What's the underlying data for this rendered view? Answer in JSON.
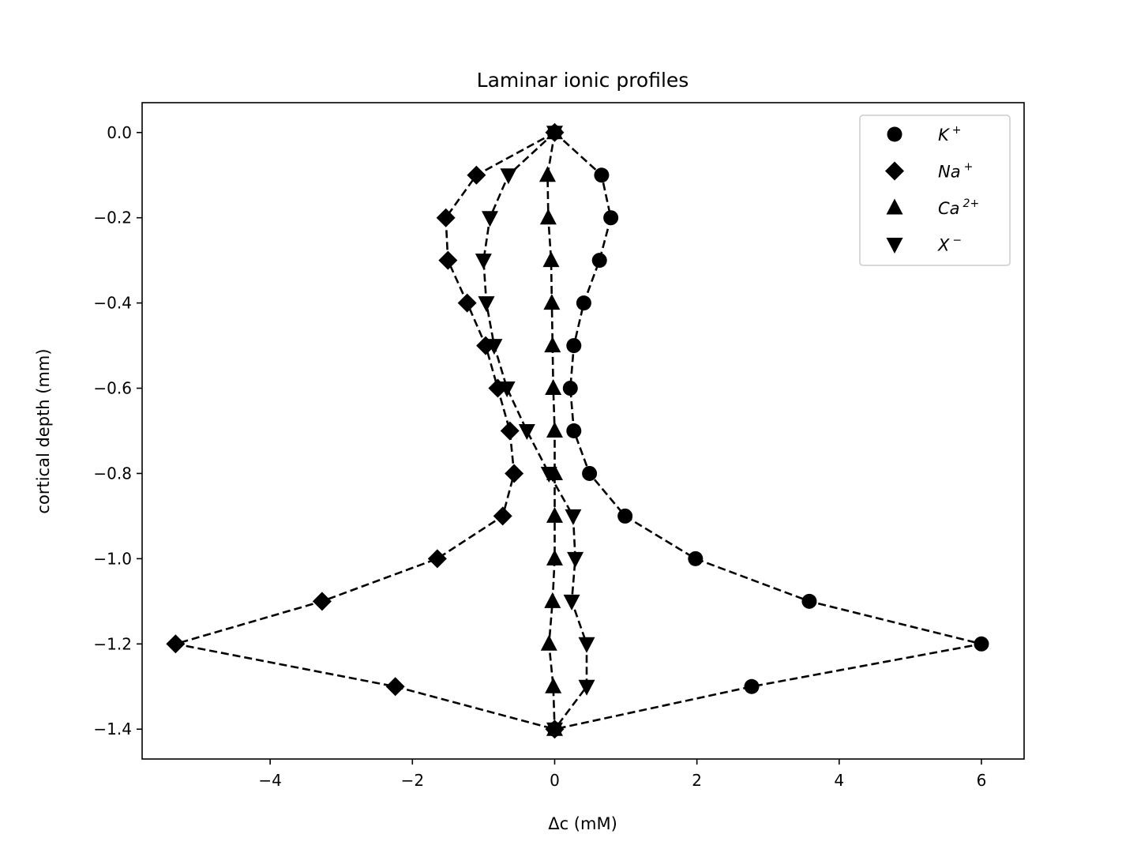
{
  "chart_data": {
    "type": "line",
    "title": "Laminar ionic profiles",
    "xlabel": "Δc (mM)",
    "ylabel": "cortical depth (mm)",
    "xlim": [
      -5.8,
      6.6
    ],
    "ylim": [
      -1.47,
      0.07
    ],
    "xticks": [
      -4,
      -2,
      0,
      2,
      4,
      6
    ],
    "xtick_labels": [
      "−4",
      "−2",
      "0",
      "2",
      "4",
      "6"
    ],
    "yticks": [
      0.0,
      -0.2,
      -0.4,
      -0.6,
      -0.8,
      -1.0,
      -1.2,
      -1.4
    ],
    "ytick_labels": [
      "0.0",
      "−0.2",
      "−0.4",
      "−0.6",
      "−0.8",
      "−1.0",
      "−1.2",
      "−1.4"
    ],
    "grid": false,
    "legend_position": "top-right",
    "line_style": "dashed",
    "color": "#000000",
    "y": [
      0.0,
      -0.1,
      -0.2,
      -0.3,
      -0.4,
      -0.5,
      -0.6,
      -0.7,
      -0.8,
      -0.9,
      -1.0,
      -1.1,
      -1.2,
      -1.3,
      -1.4
    ],
    "series": [
      {
        "name": "K",
        "sup": "+",
        "marker": "circle",
        "x": [
          0.0,
          0.66,
          0.79,
          0.63,
          0.41,
          0.27,
          0.22,
          0.27,
          0.49,
          0.99,
          1.98,
          3.58,
          6.0,
          2.77,
          0.0
        ]
      },
      {
        "name": "Na",
        "sup": "+",
        "marker": "diamond",
        "x": [
          0.0,
          -1.1,
          -1.53,
          -1.5,
          -1.23,
          -0.97,
          -0.8,
          -0.63,
          -0.57,
          -0.73,
          -1.65,
          -3.27,
          -5.33,
          -2.24,
          0.0
        ]
      },
      {
        "name": "Ca",
        "sup": "2+",
        "marker": "triangle-up",
        "x": [
          0.0,
          -0.1,
          -0.09,
          -0.05,
          -0.04,
          -0.03,
          -0.02,
          0.0,
          0.0,
          0.0,
          0.0,
          -0.03,
          -0.08,
          -0.02,
          0.0
        ]
      },
      {
        "name": "X",
        "sup": "−",
        "marker": "triangle-down",
        "x": [
          0.0,
          -0.65,
          -0.91,
          -1.0,
          -0.96,
          -0.85,
          -0.67,
          -0.39,
          -0.08,
          0.26,
          0.29,
          0.24,
          0.45,
          0.45,
          0.0
        ]
      }
    ]
  }
}
